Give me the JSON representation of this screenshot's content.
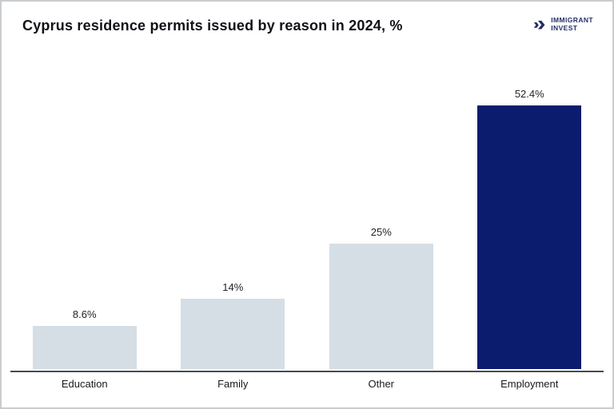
{
  "header": {
    "title": "Cyprus residence permits issued by reason in 2024, %",
    "logo": {
      "icon": "double-chevron-right-icon",
      "line1": "IMMIGRANT",
      "line2": "INVEST",
      "color": "#242f66"
    }
  },
  "colors": {
    "bar_default": "#d5dee5",
    "bar_highlight": "#0b1c6e",
    "axis": "#4a4a4a",
    "background": "#ffffff",
    "border": "#c9cccf"
  },
  "chart_data": {
    "type": "bar",
    "title": "Cyprus residence permits issued by reason in 2024, %",
    "categories": [
      "Education",
      "Family",
      "Other",
      "Employment"
    ],
    "values": [
      8.6,
      14,
      25,
      52.4
    ],
    "value_labels": [
      "8.6%",
      "14%",
      "25%",
      "52.4%"
    ],
    "bar_colors": [
      "#d5dee5",
      "#d5dee5",
      "#d5dee5",
      "#0b1c6e"
    ],
    "highlight_category": "Employment",
    "xlabel": "",
    "ylabel": "",
    "ylim": [
      0,
      56
    ],
    "grid": false,
    "legend": "none",
    "orientation": "vertical"
  }
}
